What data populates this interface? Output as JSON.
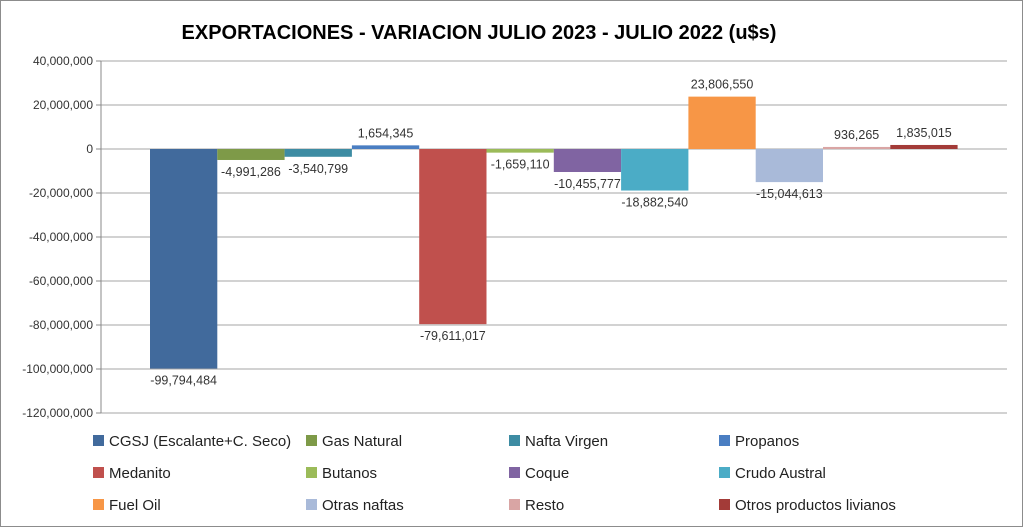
{
  "chart_data": {
    "type": "bar",
    "title": "EXPORTACIONES - VARIACION JULIO 2023 - JULIO 2022 (u$s)",
    "xlabel": "",
    "ylabel": "",
    "ylim": [
      -120000000,
      40000000
    ],
    "yticks": [
      40000000,
      20000000,
      0,
      -20000000,
      -40000000,
      -60000000,
      -80000000,
      -100000000,
      -120000000
    ],
    "ytick_labels": [
      "40,000,000",
      "20,000,000",
      "0",
      "-20,000,000",
      "-40,000,000",
      "-60,000,000",
      "-80,000,000",
      "-100,000,000",
      "-120,000,000"
    ],
    "grid": true,
    "legend_position": "bottom",
    "series": [
      {
        "name": "CGSJ (Escalante+C. Seco)",
        "value": -99794484,
        "label": "-99,794,484",
        "color": "#416A9C"
      },
      {
        "name": "Gas Natural",
        "value": -4991286,
        "label": "-4,991,286",
        "color": "#7E9A48"
      },
      {
        "name": "Nafta Virgen",
        "value": -3540799,
        "label": "-3,540,799",
        "color": "#3D8CA3"
      },
      {
        "name": "Propanos",
        "value": 1654345,
        "label": "1,654,345",
        "color": "#4A7EC2"
      },
      {
        "name": "Medanito",
        "value": -79611017,
        "label": "-79,611,017",
        "color": "#C0504D"
      },
      {
        "name": "Butanos",
        "value": -1659110,
        "label": "-1,659,110",
        "color": "#9BBB59"
      },
      {
        "name": "Coque",
        "value": -10455777,
        "label": "-10,455,777",
        "color": "#8064A2"
      },
      {
        "name": "Crudo Austral",
        "value": -18882540,
        "label": "-18,882,540",
        "color": "#4BACC6"
      },
      {
        "name": "Fuel Oil",
        "value": 23806550,
        "label": "23,806,550",
        "color": "#F79646"
      },
      {
        "name": "Otras naftas",
        "value": -15044613,
        "label": "-15,044,613",
        "color": "#A9BAD9"
      },
      {
        "name": "Resto",
        "value": 936265,
        "label": "936,265",
        "color": "#D9A5A4"
      },
      {
        "name": "Otros productos livianos",
        "value": 1835015,
        "label": "1,835,015",
        "color": "#A33B38"
      }
    ]
  }
}
